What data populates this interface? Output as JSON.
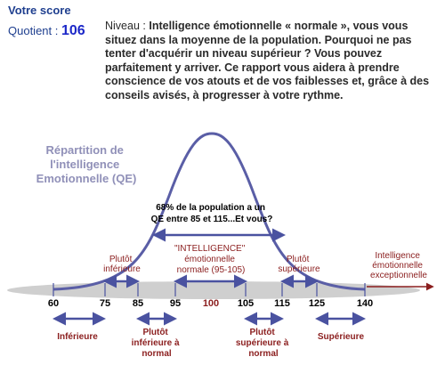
{
  "score_section": {
    "title": "Votre score",
    "quotient_label": "Quotient :",
    "quotient_value": "106",
    "niveau_label": "Niveau :",
    "description": "Intelligence émotionnelle « normale », vous vous situez dans la moyenne de la population. Pourquoi ne pas tenter d'acquérir un niveau supérieur ? Vous pouvez parfaitement y arriver. Ce rapport vous aidera à prendre conscience de vos atouts et de vos faiblesses et, grâce à des conseils avisés, à progresser à votre rythme."
  },
  "colors": {
    "curve": "#5a5ea6",
    "axis_band": "#cfcfcf",
    "arrow": "#4a52a0",
    "category_text": "#8b1e1e",
    "tick_text": "#000000",
    "tick_100": "#8b1e1e",
    "highlight_title": "#9090b8"
  },
  "chart": {
    "title_lines": [
      "Répartition de",
      "l'intelligence",
      "Emotionnelle (QE)"
    ],
    "callout_lines": [
      "68% de la population a un",
      "QE entre 85 et 115...Et vous?"
    ],
    "center_lines": [
      "\"INTELLIGENCE\"",
      "émotionnelle",
      "normale (95-105)"
    ],
    "upper_left_lines": [
      "Plutôt",
      "inférieure"
    ],
    "upper_right_lines": [
      "Plutôt",
      "supérieure"
    ],
    "exceptional_lines": [
      "Intelligence",
      "émotionnelle",
      "exceptionnelle"
    ],
    "ticks": [
      "60",
      "75",
      "85",
      "95",
      "100",
      "105",
      "115",
      "125",
      "140"
    ],
    "bottom_labels": {
      "inferieure": [
        "Inférieure"
      ],
      "plutot_inf_normal": [
        "Plutôt",
        "inférieure à",
        "normal"
      ],
      "plutot_sup_normal": [
        "Plutôt",
        "supérieure à",
        "normal"
      ],
      "superieure": [
        "Supérieure"
      ]
    }
  }
}
